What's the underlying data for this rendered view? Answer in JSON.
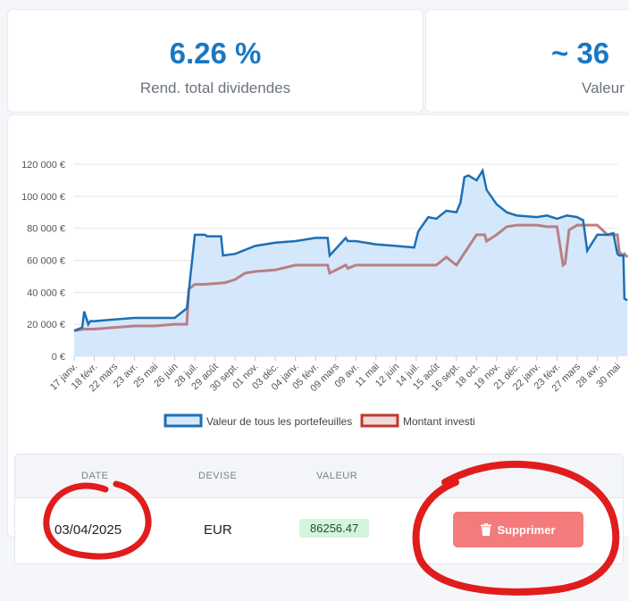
{
  "stats": [
    {
      "value": "6.26 %",
      "label": "Rend. total dividendes"
    },
    {
      "value": "~ 36",
      "label": "Valeur"
    }
  ],
  "chart_data": {
    "type": "area",
    "title": "",
    "xlabel": "",
    "ylabel": "",
    "ylim": [
      0,
      120000
    ],
    "y_ticks": [
      "0 €",
      "20 000 €",
      "40 000 €",
      "60 000 €",
      "80 000 €",
      "100 000 €",
      "120 000 €"
    ],
    "x_ticks": [
      "17 janv.",
      "18 févr.",
      "22 mars",
      "23 avr.",
      "25 mai",
      "26 juin",
      "28 juil.",
      "29 août",
      "30 sept.",
      "01 nov.",
      "03 déc.",
      "04 janv.",
      "05 févr.",
      "09 mars",
      "09 avr.",
      "11 mai",
      "12 juin",
      "14 juil.",
      "15 août",
      "16 sept.",
      "18 oct.",
      "19 nov.",
      "21 déc.",
      "22 janv.",
      "23 févr.",
      "27 mars",
      "28 avr.",
      "30 mai"
    ],
    "series": [
      {
        "name": "Valeur de tous les portefeuilles",
        "color": "#1c6fb6",
        "fill": "#d5e8fb",
        "x": [
          0,
          0.4,
          0.5,
          0.7,
          0.8,
          1,
          2,
          3,
          4,
          5,
          5.6,
          5.7,
          6,
          6.5,
          6.6,
          7.3,
          7.4,
          8,
          9,
          10,
          11,
          12,
          12.6,
          12.7,
          13.5,
          13.6,
          14,
          15,
          16,
          16.9,
          17.1,
          17.6,
          18,
          18.5,
          19,
          19.2,
          19.4,
          19.6,
          20,
          20.3,
          20.5,
          21,
          21.5,
          22,
          23,
          23.5,
          24,
          24.5,
          25,
          25.3,
          25.5,
          26,
          26.5,
          26.8,
          27,
          27.1,
          27.3,
          27.35,
          27.5
        ],
        "values": [
          16000,
          18000,
          28000,
          20000,
          22000,
          22000,
          23000,
          24000,
          24000,
          24000,
          30000,
          41000,
          76000,
          76000,
          75000,
          75000,
          63000,
          64000,
          69000,
          71000,
          72000,
          74000,
          74000,
          63000,
          74000,
          72000,
          72000,
          70000,
          69000,
          68000,
          78000,
          87000,
          86000,
          91000,
          90000,
          96000,
          112000,
          113000,
          110000,
          116000,
          104000,
          95000,
          90000,
          88000,
          87000,
          88000,
          86000,
          88000,
          87000,
          85000,
          66000,
          76000,
          76000,
          77000,
          64000,
          63000,
          63000,
          36000,
          35000
        ]
      },
      {
        "name": "Montant investi",
        "color": "#c0392b",
        "line": "#b97f84",
        "fill": "#efdada",
        "x": [
          0,
          0.5,
          1,
          2,
          3,
          4,
          5,
          5.6,
          5.7,
          6,
          6.5,
          7.5,
          8,
          8.5,
          9,
          10,
          11,
          12,
          12.6,
          12.7,
          13.5,
          13.6,
          14,
          15,
          17,
          18,
          18.5,
          19,
          20,
          20.4,
          20.5,
          21,
          21.5,
          22,
          23,
          23.5,
          24,
          24.3,
          24.4,
          24.6,
          25,
          26,
          26.5,
          27,
          27.1,
          27.3,
          27.35,
          27.5
        ],
        "values": [
          16000,
          17000,
          17000,
          18000,
          19000,
          19000,
          20000,
          20000,
          42000,
          45000,
          45000,
          46000,
          48000,
          52000,
          53000,
          54000,
          57000,
          57000,
          57000,
          52000,
          57000,
          55000,
          57000,
          57000,
          57000,
          57000,
          62000,
          57000,
          76000,
          76000,
          72000,
          76000,
          81000,
          82000,
          82000,
          81000,
          81000,
          57000,
          58000,
          79000,
          82000,
          82000,
          76000,
          76000,
          65000,
          63000,
          64000,
          62000
        ]
      }
    ],
    "grid": true,
    "legend": "bottom"
  },
  "table": {
    "headers": [
      "DATE",
      "DEVISE",
      "VALEUR"
    ],
    "row": {
      "date": "03/04/2025",
      "currency": "EUR",
      "value": "86256.47"
    },
    "delete_label": "Supprimer"
  }
}
